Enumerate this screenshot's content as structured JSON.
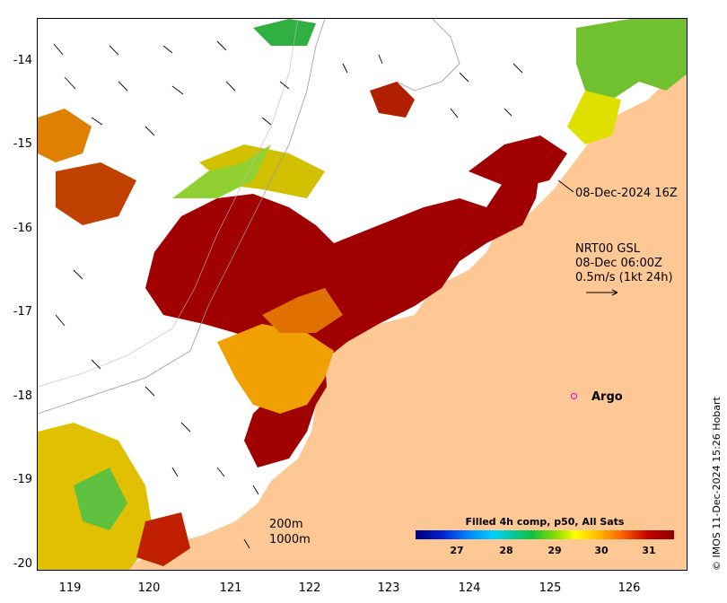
{
  "map": {
    "y_ticks": [
      "-14",
      "-15",
      "-16",
      "-17",
      "-18",
      "-19",
      "-20"
    ],
    "x_ticks": [
      "119",
      "120",
      "121",
      "122",
      "123",
      "124",
      "125",
      "126"
    ]
  },
  "annotations": {
    "timestamp": "08-Dec-2024 16Z",
    "vector_title": "NRT00 GSL",
    "vector_time": "08-Dec 06:00Z",
    "vector_scale": "0.5m/s (1kt 24h)",
    "argo_label": "Argo"
  },
  "scale_labels": {
    "depth1": "200m",
    "depth2": "1000m"
  },
  "colorbar": {
    "title": "Filled 4h comp, p50, All Sats",
    "ticks": [
      "27",
      "28",
      "29",
      "30",
      "31"
    ]
  },
  "credit": "© IMOS 11-Dec-2024 15:26 Hobart",
  "colors": {
    "land": "#fdc894",
    "hot": "#a00000",
    "warm": "#f0a000",
    "mid": "#e0d000",
    "cool": "#40b040"
  }
}
